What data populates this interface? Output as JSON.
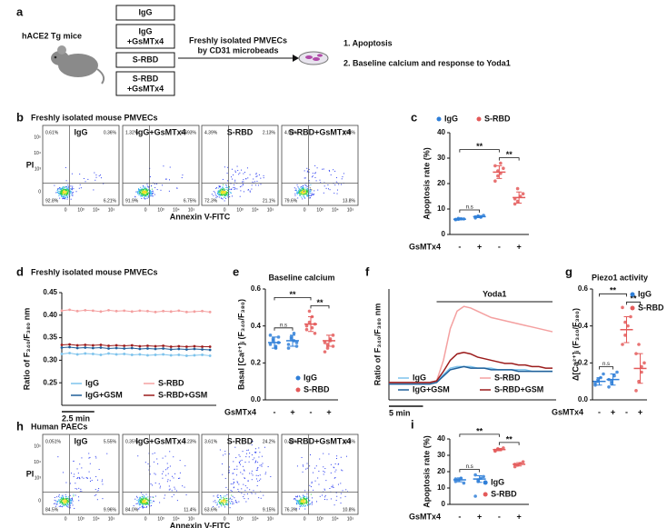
{
  "panel_a": {
    "letter": "a",
    "mouse": "hACE2 Tg mice",
    "groups": [
      [
        "IgG"
      ],
      [
        "IgG",
        "+GsMTx4"
      ],
      [
        "S-RBD"
      ],
      [
        "S-RBD",
        "+GsMTx4"
      ]
    ],
    "arrow_text": [
      "Freshly isolated PMVECs",
      "by CD31 microbeads"
    ],
    "outcomes": [
      "1. Apoptosis",
      "2. Baseline calcium and response to Yoda1"
    ]
  },
  "panel_b": {
    "letter": "b",
    "title": "Freshly isolated mouse PMVECs",
    "x_label": "Annexin V-FITC",
    "y_label": "PI",
    "x_ticks": [
      "0",
      "10³",
      "10⁴",
      "10⁵"
    ],
    "y_ticks": [
      "0",
      "10³",
      "10⁴",
      "10⁵"
    ],
    "plots": [
      {
        "name": "IgG",
        "quadrants": [
          "0.61%",
          "0.36%",
          "92.8%",
          "6.21%"
        ]
      },
      {
        "name": "IgG+GsMTx4",
        "quadrants": [
          "1.32%",
          "0.693%",
          "91.9%",
          "6.75%"
        ]
      },
      {
        "name": "S-RBD",
        "quadrants": [
          "4.39%",
          "2.13%",
          "72.3%",
          "21.1%"
        ]
      },
      {
        "name": "S-RBD+GsMTx4",
        "quadrants": [
          "4.57%",
          "2.08%",
          "79.6%",
          "13.8%"
        ]
      }
    ]
  },
  "panel_h": {
    "letter": "h",
    "title": "Human PAECs",
    "x_label": "Annexin V-FITC",
    "y_label": "PI",
    "x_ticks": [
      "0",
      "10³",
      "10⁴",
      "10⁵"
    ],
    "y_ticks": [
      "0",
      "10³",
      "10⁴",
      "10⁵"
    ],
    "plots": [
      {
        "name": "IgG",
        "quadrants": [
          "0.051%",
          "5.55%",
          "84.5%",
          "9.96%"
        ]
      },
      {
        "name": "IgG+GsMTx4",
        "quadrants": [
          "0.35%",
          "4.23%",
          "84.0%",
          "11.4%"
        ]
      },
      {
        "name": "S-RBD",
        "quadrants": [
          "3.61%",
          "24.2%",
          "63.6%",
          "9.15%"
        ]
      },
      {
        "name": "S-RBD+GsMTx4",
        "quadrants": [
          "0.42%",
          "12.4%",
          "76.3%",
          "10.8%"
        ]
      }
    ]
  },
  "chart_data": [
    {
      "type": "dot",
      "letter": "c",
      "y_label": "Apoptosis rate (%)",
      "category_label": "GsMTx4",
      "categories": [
        "-",
        "+",
        "-",
        "+"
      ],
      "ylim": [
        0,
        40
      ],
      "yticks": [
        0,
        10,
        20,
        30,
        40
      ],
      "legend": "top",
      "series": [
        {
          "name": "IgG",
          "color": "#2f7fd8",
          "values": [
            [
              5.8,
              6.0,
              6.2,
              6.1,
              5.9,
              6.3
            ],
            [
              6.5,
              7.2,
              6.8,
              7.5,
              6.9,
              7.1
            ],
            null,
            null
          ],
          "means": [
            6,
            7,
            null,
            null
          ],
          "errors": [
            0.3,
            0.4,
            null,
            null
          ]
        },
        {
          "name": "S-RBD",
          "color": "#e45a5a",
          "values": [
            null,
            null,
            [
              21,
              23,
              24,
              26,
              27,
              25,
              28
            ],
            [
              12,
              13,
              15,
              16,
              14,
              18
            ]
          ],
          "means": [
            null,
            null,
            24.5,
            14.5
          ],
          "errors": [
            null,
            null,
            2.5,
            2.2
          ]
        }
      ],
      "annotations": [
        {
          "text": "n.s",
          "pair": [
            0,
            1
          ]
        },
        {
          "text": "**",
          "pair": [
            0,
            2
          ]
        },
        {
          "text": "**",
          "pair": [
            2,
            3
          ]
        }
      ]
    },
    {
      "type": "line",
      "letter": "d",
      "title": "Freshly isolated mouse PMVECs",
      "y_label": "Ratio of F₃₄₀/F₃₈₀ nm",
      "markers": true,
      "x": [
        0,
        0.6,
        1.2,
        1.8,
        2.4,
        3,
        3.6,
        4.2,
        4.8,
        5.4,
        6,
        6.6,
        7.2,
        7.8,
        8.4,
        9,
        9.6,
        10.2,
        10.8,
        11.4
      ],
      "xlim": [
        0,
        11.6
      ],
      "ylim": [
        0.2,
        0.45
      ],
      "yticks": [
        0.25,
        {
          "value": 0.3,
          "label": "0.30"
        },
        0.35,
        {
          "value": 0.4,
          "label": "0.40"
        },
        0.45
      ],
      "scale_bar": {
        "label": "2.5 min",
        "length": 2.5
      },
      "series": [
        {
          "name": "IgG",
          "color": "#7ec3ec",
          "values": [
            0.314,
            0.316,
            0.313,
            0.315,
            0.314,
            0.312,
            0.315,
            0.313,
            0.314,
            0.312,
            0.313,
            0.311,
            0.312,
            0.313,
            0.311,
            0.312,
            0.31,
            0.311,
            0.312,
            0.31
          ]
        },
        {
          "name": "S-RBD",
          "color": "#f4a0a0",
          "values": [
            0.41,
            0.412,
            0.409,
            0.411,
            0.41,
            0.408,
            0.411,
            0.409,
            0.41,
            0.408,
            0.41,
            0.409,
            0.407,
            0.409,
            0.408,
            0.41,
            0.407,
            0.408,
            0.409,
            0.407
          ]
        },
        {
          "name": "IgG+GSM",
          "color": "#1f5f99",
          "values": [
            0.328,
            0.329,
            0.327,
            0.328,
            0.327,
            0.328,
            0.326,
            0.327,
            0.326,
            0.327,
            0.325,
            0.326,
            0.325,
            0.326,
            0.324,
            0.325,
            0.324,
            0.325,
            0.324,
            0.323
          ]
        },
        {
          "name": "S-RBD+GSM",
          "color": "#9b1b1b",
          "values": [
            0.334,
            0.335,
            0.333,
            0.334,
            0.333,
            0.334,
            0.332,
            0.333,
            0.332,
            0.333,
            0.331,
            0.332,
            0.331,
            0.332,
            0.33,
            0.331,
            0.33,
            0.331,
            0.33,
            0.33
          ]
        }
      ]
    },
    {
      "type": "dot",
      "letter": "e",
      "title": "Baseline calcium",
      "y_label": "Basal [Ca²⁺]ᵢ (F₃₄₀/F₃₈₀)",
      "category_label": "GsMTx4",
      "categories": [
        "-",
        "+",
        "-",
        "+"
      ],
      "ylim": [
        0,
        0.6
      ],
      "yticks": [
        {
          "value": 0,
          "label": "0.0"
        },
        0.2,
        0.4,
        0.6
      ],
      "legend": "lower right",
      "series": [
        {
          "name": "IgG",
          "color": "#2f7fd8",
          "values": [
            [
              0.3,
              0.33,
              0.28,
              0.31,
              0.35,
              0.32,
              0.29,
              0.34
            ],
            [
              0.28,
              0.33,
              0.36,
              0.31,
              0.3,
              0.34,
              0.32,
              0.29
            ],
            null,
            null
          ],
          "means": [
            0.31,
            0.32,
            null,
            null
          ],
          "errors": [
            0.03,
            0.03,
            null,
            null
          ]
        },
        {
          "name": "S-RBD",
          "color": "#e45a5a",
          "values": [
            null,
            null,
            [
              0.38,
              0.42,
              0.45,
              0.36,
              0.4,
              0.48,
              0.39,
              0.41
            ],
            [
              0.26,
              0.3,
              0.32,
              0.35,
              0.31,
              0.28,
              0.33,
              0.29
            ]
          ],
          "means": [
            null,
            null,
            0.41,
            0.32
          ],
          "errors": [
            null,
            null,
            0.04,
            0.03
          ]
        }
      ],
      "annotations": [
        {
          "text": "n.s",
          "pair": [
            0,
            1
          ]
        },
        {
          "text": "**",
          "pair": [
            0,
            2
          ]
        },
        {
          "text": "**",
          "pair": [
            2,
            3
          ]
        }
      ]
    },
    {
      "type": "line",
      "letter": "f",
      "y_label": "Ratio of F₃₄₀/F₃₈₀ nm",
      "markers": false,
      "x": [
        0,
        1,
        2,
        3,
        4,
        5,
        6,
        7,
        8,
        9,
        10,
        11,
        12,
        13,
        14,
        15,
        16,
        17,
        18,
        19,
        20,
        21,
        22,
        23,
        24
      ],
      "xlim": [
        0,
        24
      ],
      "ylim": [
        0.2,
        0.9
      ],
      "scale_bar": {
        "label": "5 min",
        "length": 5
      },
      "annotation": {
        "text": "Yoda1",
        "x": [
          7,
          24
        ]
      },
      "series": [
        {
          "name": "IgG",
          "color": "#7ec3ec",
          "values": [
            0.31,
            0.31,
            0.31,
            0.31,
            0.31,
            0.31,
            0.31,
            0.32,
            0.36,
            0.4,
            0.41,
            0.41,
            0.41,
            0.4,
            0.4,
            0.4,
            0.39,
            0.39,
            0.39,
            0.39,
            0.39,
            0.38,
            0.38,
            0.38,
            0.38
          ]
        },
        {
          "name": "S-RBD",
          "color": "#f4a0a0",
          "values": [
            0.31,
            0.31,
            0.31,
            0.31,
            0.31,
            0.31,
            0.31,
            0.32,
            0.45,
            0.65,
            0.76,
            0.79,
            0.78,
            0.76,
            0.74,
            0.72,
            0.71,
            0.7,
            0.69,
            0.68,
            0.67,
            0.66,
            0.65,
            0.64,
            0.63
          ]
        },
        {
          "name": "IgG+GSM",
          "color": "#1f5f99",
          "values": [
            0.3,
            0.3,
            0.3,
            0.3,
            0.3,
            0.3,
            0.3,
            0.31,
            0.35,
            0.39,
            0.4,
            0.41,
            0.4,
            0.4,
            0.4,
            0.39,
            0.39,
            0.39,
            0.39,
            0.38,
            0.38,
            0.38,
            0.38,
            0.38,
            0.38
          ]
        },
        {
          "name": "S-RBD+GSM",
          "color": "#9b1b1b",
          "values": [
            0.31,
            0.31,
            0.31,
            0.31,
            0.31,
            0.31,
            0.31,
            0.32,
            0.38,
            0.45,
            0.49,
            0.5,
            0.49,
            0.47,
            0.46,
            0.45,
            0.44,
            0.43,
            0.43,
            0.42,
            0.42,
            0.41,
            0.41,
            0.4,
            0.4
          ]
        }
      ]
    },
    {
      "type": "dot",
      "letter": "g",
      "title": "Piezo1 activity",
      "y_label": "Δ[Ca²⁺]ᵢ (F₃₄₀/F₃₈₀)",
      "category_label": "GsMTx4",
      "categories": [
        "-",
        "+",
        "-",
        "+"
      ],
      "ylim": [
        0,
        0.6
      ],
      "yticks": [
        {
          "value": 0,
          "label": "0.0"
        },
        0.2,
        0.4,
        0.6
      ],
      "legend": "upper right",
      "series": [
        {
          "name": "IgG",
          "color": "#2f7fd8",
          "values": [
            [
              0.08,
              0.1,
              0.12,
              0.14,
              0.09,
              0.11
            ],
            [
              0.07,
              0.1,
              0.13,
              0.15,
              0.11,
              0.09
            ],
            null,
            null
          ],
          "means": [
            0.1,
            0.11,
            null,
            null
          ],
          "errors": [
            0.02,
            0.03,
            null,
            null
          ]
        },
        {
          "name": "S-RBD",
          "color": "#e45a5a",
          "values": [
            null,
            null,
            [
              0.3,
              0.35,
              0.4,
              0.45,
              0.5,
              0.42
            ],
            [
              0.05,
              0.1,
              0.15,
              0.2,
              0.25,
              0.3,
              0.18
            ]
          ],
          "means": [
            null,
            null,
            0.38,
            0.17
          ],
          "errors": [
            null,
            null,
            0.07,
            0.08
          ]
        }
      ],
      "annotations": [
        {
          "text": "n.s",
          "pair": [
            0,
            1
          ]
        },
        {
          "text": "**",
          "pair": [
            0,
            2
          ]
        },
        {
          "text": "**",
          "pair": [
            2,
            3
          ]
        }
      ]
    },
    {
      "type": "dot",
      "letter": "i",
      "y_label": "Apoptosis rate (%)",
      "category_label": "GsMTx4",
      "categories": [
        "-",
        "+",
        "-",
        "+"
      ],
      "ylim": [
        0,
        40
      ],
      "yticks": [
        0,
        10,
        20,
        30,
        40
      ],
      "legend": "lower right",
      "series": [
        {
          "name": "IgG",
          "color": "#2f7fd8",
          "values": [
            [
              14,
              15,
              16,
              13,
              15.5
            ],
            [
              5,
              14,
              16,
              17,
              18,
              15
            ],
            null,
            null
          ],
          "means": [
            15,
            15.5,
            null,
            null
          ],
          "errors": [
            1.2,
            2,
            null,
            null
          ]
        },
        {
          "name": "S-RBD",
          "color": "#e45a5a",
          "values": [
            null,
            null,
            [
              33,
              34,
              33.5,
              34.5,
              32.5
            ],
            [
              23,
              24,
              25,
              26,
              24.5
            ]
          ],
          "means": [
            null,
            null,
            33.5,
            24.5
          ],
          "errors": [
            null,
            null,
            0.7,
            1
          ]
        }
      ],
      "annotations": [
        {
          "text": "n.s",
          "pair": [
            0,
            1
          ]
        },
        {
          "text": "**",
          "pair": [
            0,
            2
          ]
        },
        {
          "text": "**",
          "pair": [
            2,
            3
          ]
        }
      ]
    }
  ]
}
